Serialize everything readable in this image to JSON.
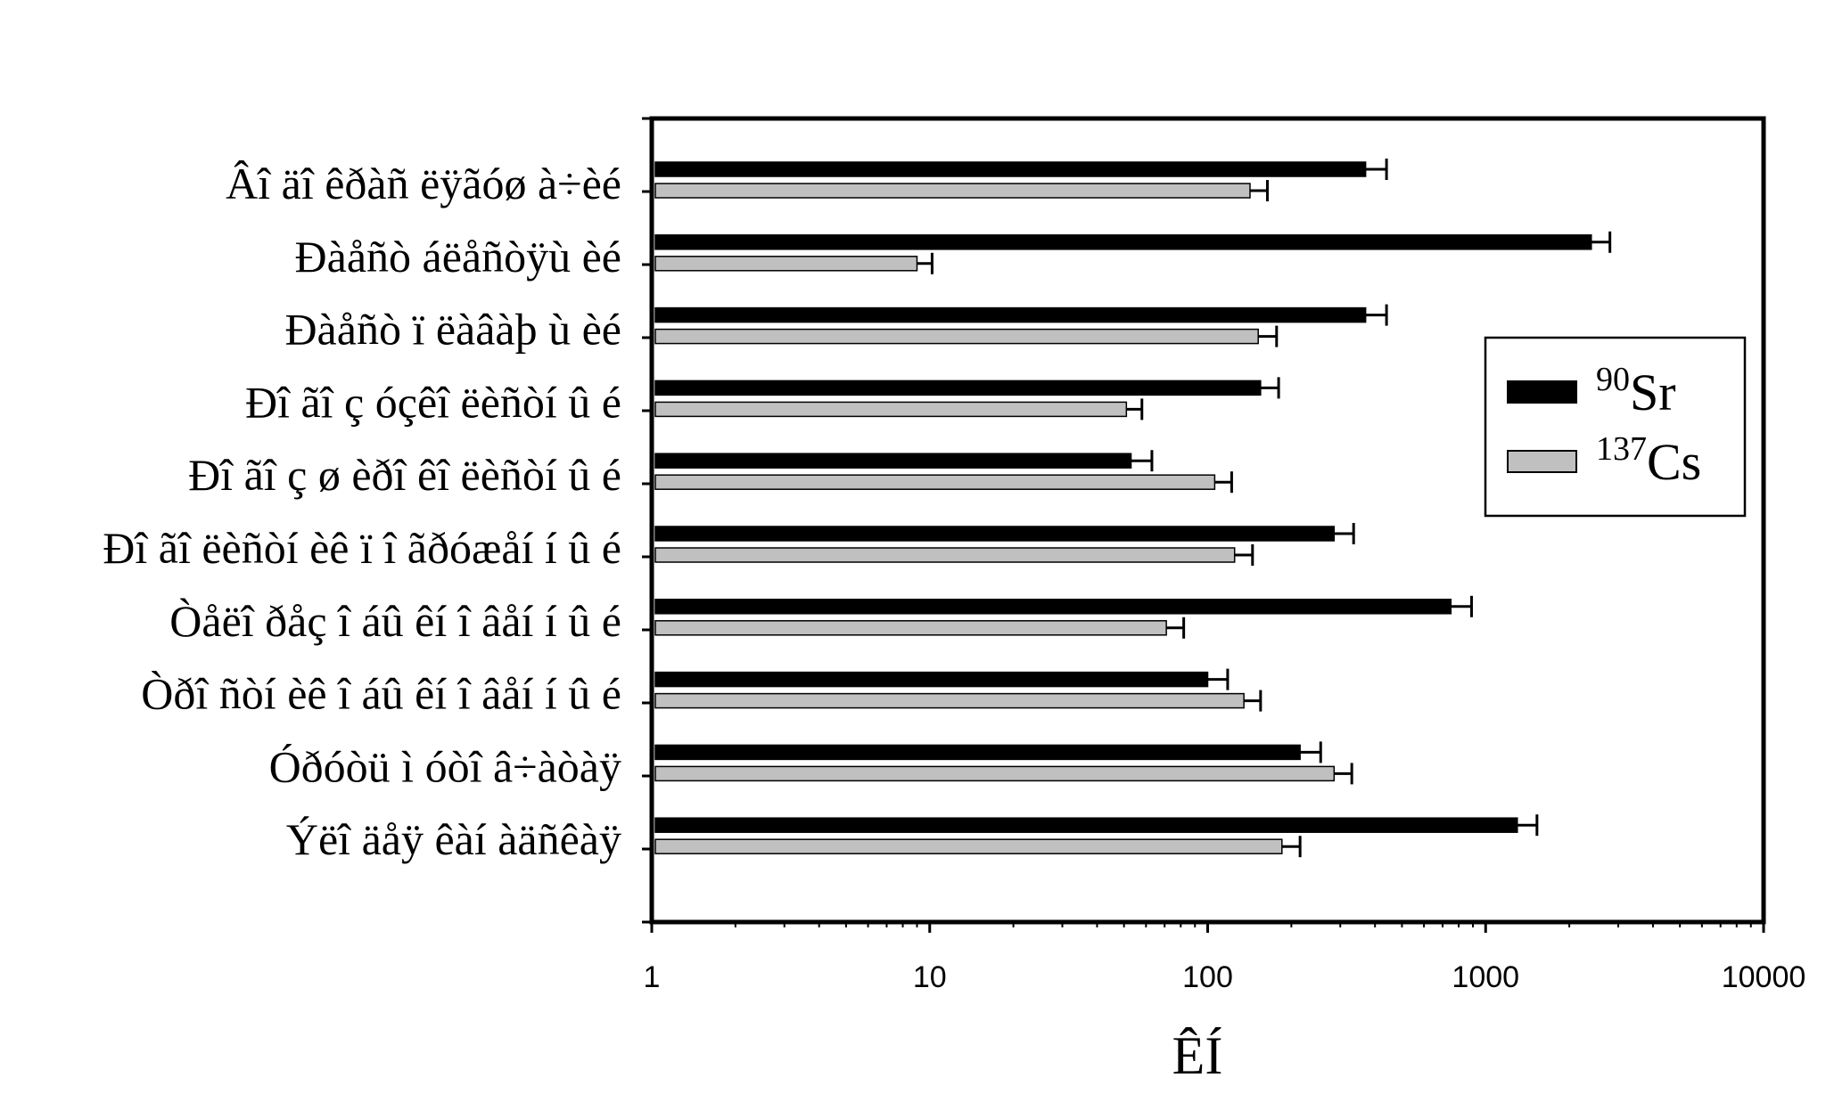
{
  "chart_data": {
    "type": "bar",
    "orientation": "horizontal",
    "x_scale": "log",
    "xlim": [
      1,
      10000
    ],
    "x_ticks": [
      "1",
      "10",
      "100",
      "1000",
      "10000"
    ],
    "xlabel": "ÊÍ",
    "ylabel": "",
    "title": "",
    "legend_position": "right",
    "grid": false,
    "categories": [
      "Âî äî êðàñ ëÿãóø à÷èé",
      "Ðàåñò áëåñòÿù èé",
      "Ðàåñò ï ëàâàþ ù èé",
      "Ðî ãî ç óçêî ëèñòí û é",
      "Ðî ãî ç ø èðî êî ëèñòí û é",
      "Ðî ãî ëèñòí èê ï î ãðóæåí í û é",
      "Òåëî ðåç î áû êí î âåí í û é",
      "Òðî ñòí èê î áû êí î âåí í û é",
      "Óðóòü ì óòî â÷àòàÿ",
      "Ýëî äåÿ êàí àäñêàÿ"
    ],
    "series": [
      {
        "name": "90Sr",
        "name_super": "90",
        "name_base": "Sr",
        "color": "#000000",
        "values": [
          370,
          2400,
          370,
          155,
          53,
          285,
          750,
          100,
          215,
          1300
        ],
        "errors": [
          70,
          400,
          70,
          25,
          10,
          50,
          140,
          18,
          40,
          230
        ]
      },
      {
        "name": "137Cs",
        "name_super": "137",
        "name_base": "Cs",
        "color": "#c0c0c0",
        "values": [
          142,
          9,
          152,
          51,
          106,
          125,
          71,
          135,
          285,
          185
        ],
        "errors": [
          22,
          1.2,
          25,
          7,
          16,
          20,
          11,
          20,
          45,
          30
        ]
      }
    ]
  }
}
